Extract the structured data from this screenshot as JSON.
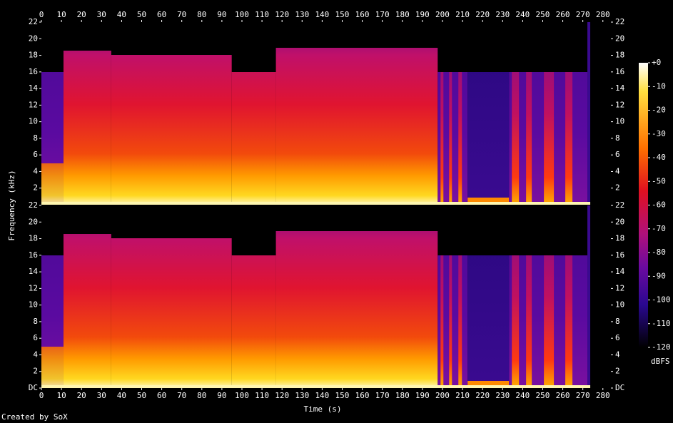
{
  "chart_data": {
    "type": "spectrogram",
    "xlabel": "Time (s)",
    "ylabel": "Frequency (kHz)",
    "footer": "Created by SoX",
    "xlim": [
      0,
      284
    ],
    "xticks": [
      0,
      10,
      20,
      30,
      40,
      50,
      60,
      70,
      80,
      90,
      100,
      110,
      120,
      130,
      140,
      150,
      160,
      170,
      180,
      190,
      200,
      210,
      220,
      230,
      240,
      250,
      260,
      270,
      280
    ],
    "channels": [
      {
        "ylim": [
          0,
          22
        ],
        "yticks": [
          2,
          4,
          6,
          8,
          10,
          12,
          14,
          16,
          18,
          20,
          22
        ]
      },
      {
        "ylim": [
          0,
          22
        ],
        "yticks": [
          {
            "value": 0,
            "label": "DC"
          },
          2,
          4,
          6,
          8,
          10,
          12,
          14,
          16,
          18,
          20,
          22
        ]
      }
    ],
    "colorbar": {
      "label": "dBFS",
      "lim": [
        -120,
        0
      ],
      "ticks": [
        {
          "value": 0,
          "label": "+0"
        },
        -10,
        -20,
        -30,
        -40,
        -50,
        -60,
        -70,
        -80,
        -90,
        -100,
        -110,
        -120
      ]
    }
  }
}
